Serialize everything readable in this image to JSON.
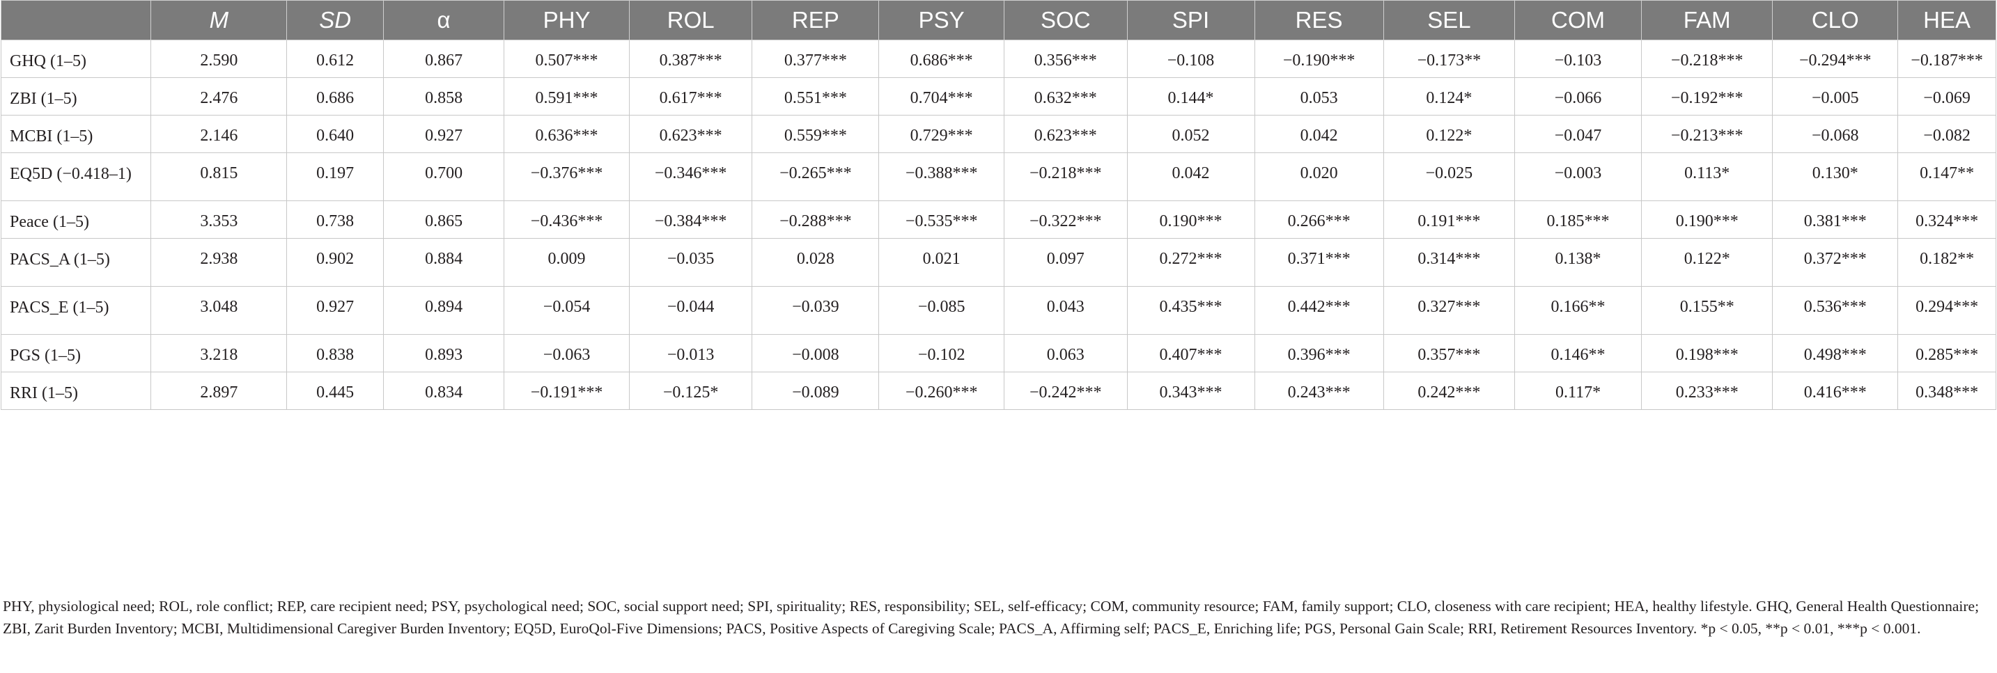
{
  "table": {
    "headers": [
      "",
      "M",
      "SD",
      "α",
      "PHY",
      "ROL",
      "REP",
      "PSY",
      "SOC",
      "SPI",
      "RES",
      "SEL",
      "COM",
      "FAM",
      "CLO",
      "HEA"
    ],
    "rows": [
      {
        "label": "GHQ (1–5)",
        "cells": [
          "2.590",
          "0.612",
          "0.867",
          "0.507***",
          "0.387***",
          "0.377***",
          "0.686***",
          "0.356***",
          "−0.108",
          "−0.190***",
          "−0.173**",
          "−0.103",
          "−0.218***",
          "−0.294***",
          "−0.187***"
        ]
      },
      {
        "label": "ZBI (1–5)",
        "cells": [
          "2.476",
          "0.686",
          "0.858",
          "0.591***",
          "0.617***",
          "0.551***",
          "0.704***",
          "0.632***",
          "0.144*",
          "0.053",
          "0.124*",
          "−0.066",
          "−0.192***",
          "−0.005",
          "−0.069"
        ]
      },
      {
        "label": "MCBI (1–5)",
        "cells": [
          "2.146",
          "0.640",
          "0.927",
          "0.636***",
          "0.623***",
          "0.559***",
          "0.729***",
          "0.623***",
          "0.052",
          "0.042",
          "0.122*",
          "−0.047",
          "−0.213***",
          "−0.068",
          "−0.082"
        ]
      },
      {
        "label": "EQ5D (−0.418–1)",
        "cells": [
          "0.815",
          "0.197",
          "0.700",
          "−0.376***",
          "−0.346***",
          "−0.265***",
          "−0.388***",
          "−0.218***",
          "0.042",
          "0.020",
          "−0.025",
          "−0.003",
          "0.113*",
          "0.130*",
          "0.147**"
        ]
      },
      {
        "label": "Peace (1–5)",
        "cells": [
          "3.353",
          "0.738",
          "0.865",
          "−0.436***",
          "−0.384***",
          "−0.288***",
          "−0.535***",
          "−0.322***",
          "0.190***",
          "0.266***",
          "0.191***",
          "0.185***",
          "0.190***",
          "0.381***",
          "0.324***"
        ]
      },
      {
        "label": "PACS_A (1–5)",
        "cells": [
          "2.938",
          "0.902",
          "0.884",
          "0.009",
          "−0.035",
          "0.028",
          "0.021",
          "0.097",
          "0.272***",
          "0.371***",
          "0.314***",
          "0.138*",
          "0.122*",
          "0.372***",
          "0.182**"
        ]
      },
      {
        "label": "PACS_E (1–5)",
        "cells": [
          "3.048",
          "0.927",
          "0.894",
          "−0.054",
          "−0.044",
          "−0.039",
          "−0.085",
          "0.043",
          "0.435***",
          "0.442***",
          "0.327***",
          "0.166**",
          "0.155**",
          "0.536***",
          "0.294***"
        ]
      },
      {
        "label": "PGS (1–5)",
        "cells": [
          "3.218",
          "0.838",
          "0.893",
          "−0.063",
          "−0.013",
          "−0.008",
          "−0.102",
          "0.063",
          "0.407***",
          "0.396***",
          "0.357***",
          "0.146**",
          "0.198***",
          "0.498***",
          "0.285***"
        ]
      },
      {
        "label": "RRI (1–5)",
        "cells": [
          "2.897",
          "0.445",
          "0.834",
          "−0.191***",
          "−0.125*",
          "−0.089",
          "−0.260***",
          "−0.242***",
          "0.343***",
          "0.243***",
          "0.242***",
          "0.117*",
          "0.233***",
          "0.416***",
          "0.348***"
        ]
      }
    ]
  },
  "notes": {
    "abbreviations": "PHY, physiological need; ROL, role conflict; REP, care recipient need; PSY, psychological need; SOC, social support need; SPI, spirituality; RES, responsibility; SEL, self-efficacy; COM, community resource; FAM, family support; CLO, closeness with care recipient; HEA, healthy lifestyle. GHQ, General Health Questionnaire; ZBI, Zarit Burden Inventory; MCBI, Multidimensional Caregiver Burden Inventory; EQ5D, EuroQol-Five Dimensions; PACS, Positive Aspects of Caregiving Scale; PACS_A, Affirming self; PACS_E, Enriching life; PGS, Personal Gain Scale; RRI, Retirement Resources Inventory. *p < 0.05, **p < 0.01, ***p < 0.001."
  }
}
